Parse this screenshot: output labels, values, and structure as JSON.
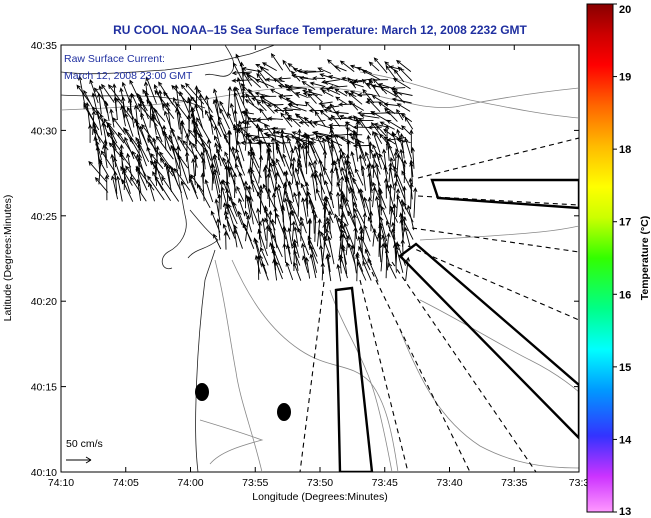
{
  "title": "RU COOL  NOAA–15  Sea Surface Temperature:  March 12, 2008 2232 GMT",
  "current_note": {
    "line1": "Raw Surface Current:",
    "line2": "March 12, 2008 23:00 GMT"
  },
  "scale_label": "50 cm/s",
  "xlabel": "Longitude (Degrees:Minutes)",
  "ylabel": "Latitude (Degrees:Minutes)",
  "x_ticks": [
    "74:10",
    "74:05",
    "74:00",
    "73:55",
    "73:50",
    "73:45",
    "73:40",
    "73:35",
    "73:3"
  ],
  "y_ticks": [
    "40:35",
    "40:30",
    "40:25",
    "40:20",
    "40:15",
    "40:10"
  ],
  "colorbar": {
    "label": "Temperature (°C)",
    "ticks": [
      "20",
      "19",
      "18",
      "17",
      "16",
      "15",
      "14",
      "13"
    ],
    "range": [
      13,
      20
    ],
    "colors": [
      "#ff99ff",
      "#cc33ff",
      "#3333ff",
      "#0099ff",
      "#00ffff",
      "#00ff88",
      "#33ff00",
      "#ccff00",
      "#ffff00",
      "#ffbb00",
      "#ff6600",
      "#ff0000",
      "#cc0000",
      "#880000"
    ]
  },
  "map_extent": {
    "lon_range": [
      "74:10",
      "73:30"
    ],
    "lat_range": [
      "40:10",
      "40:35"
    ]
  }
}
